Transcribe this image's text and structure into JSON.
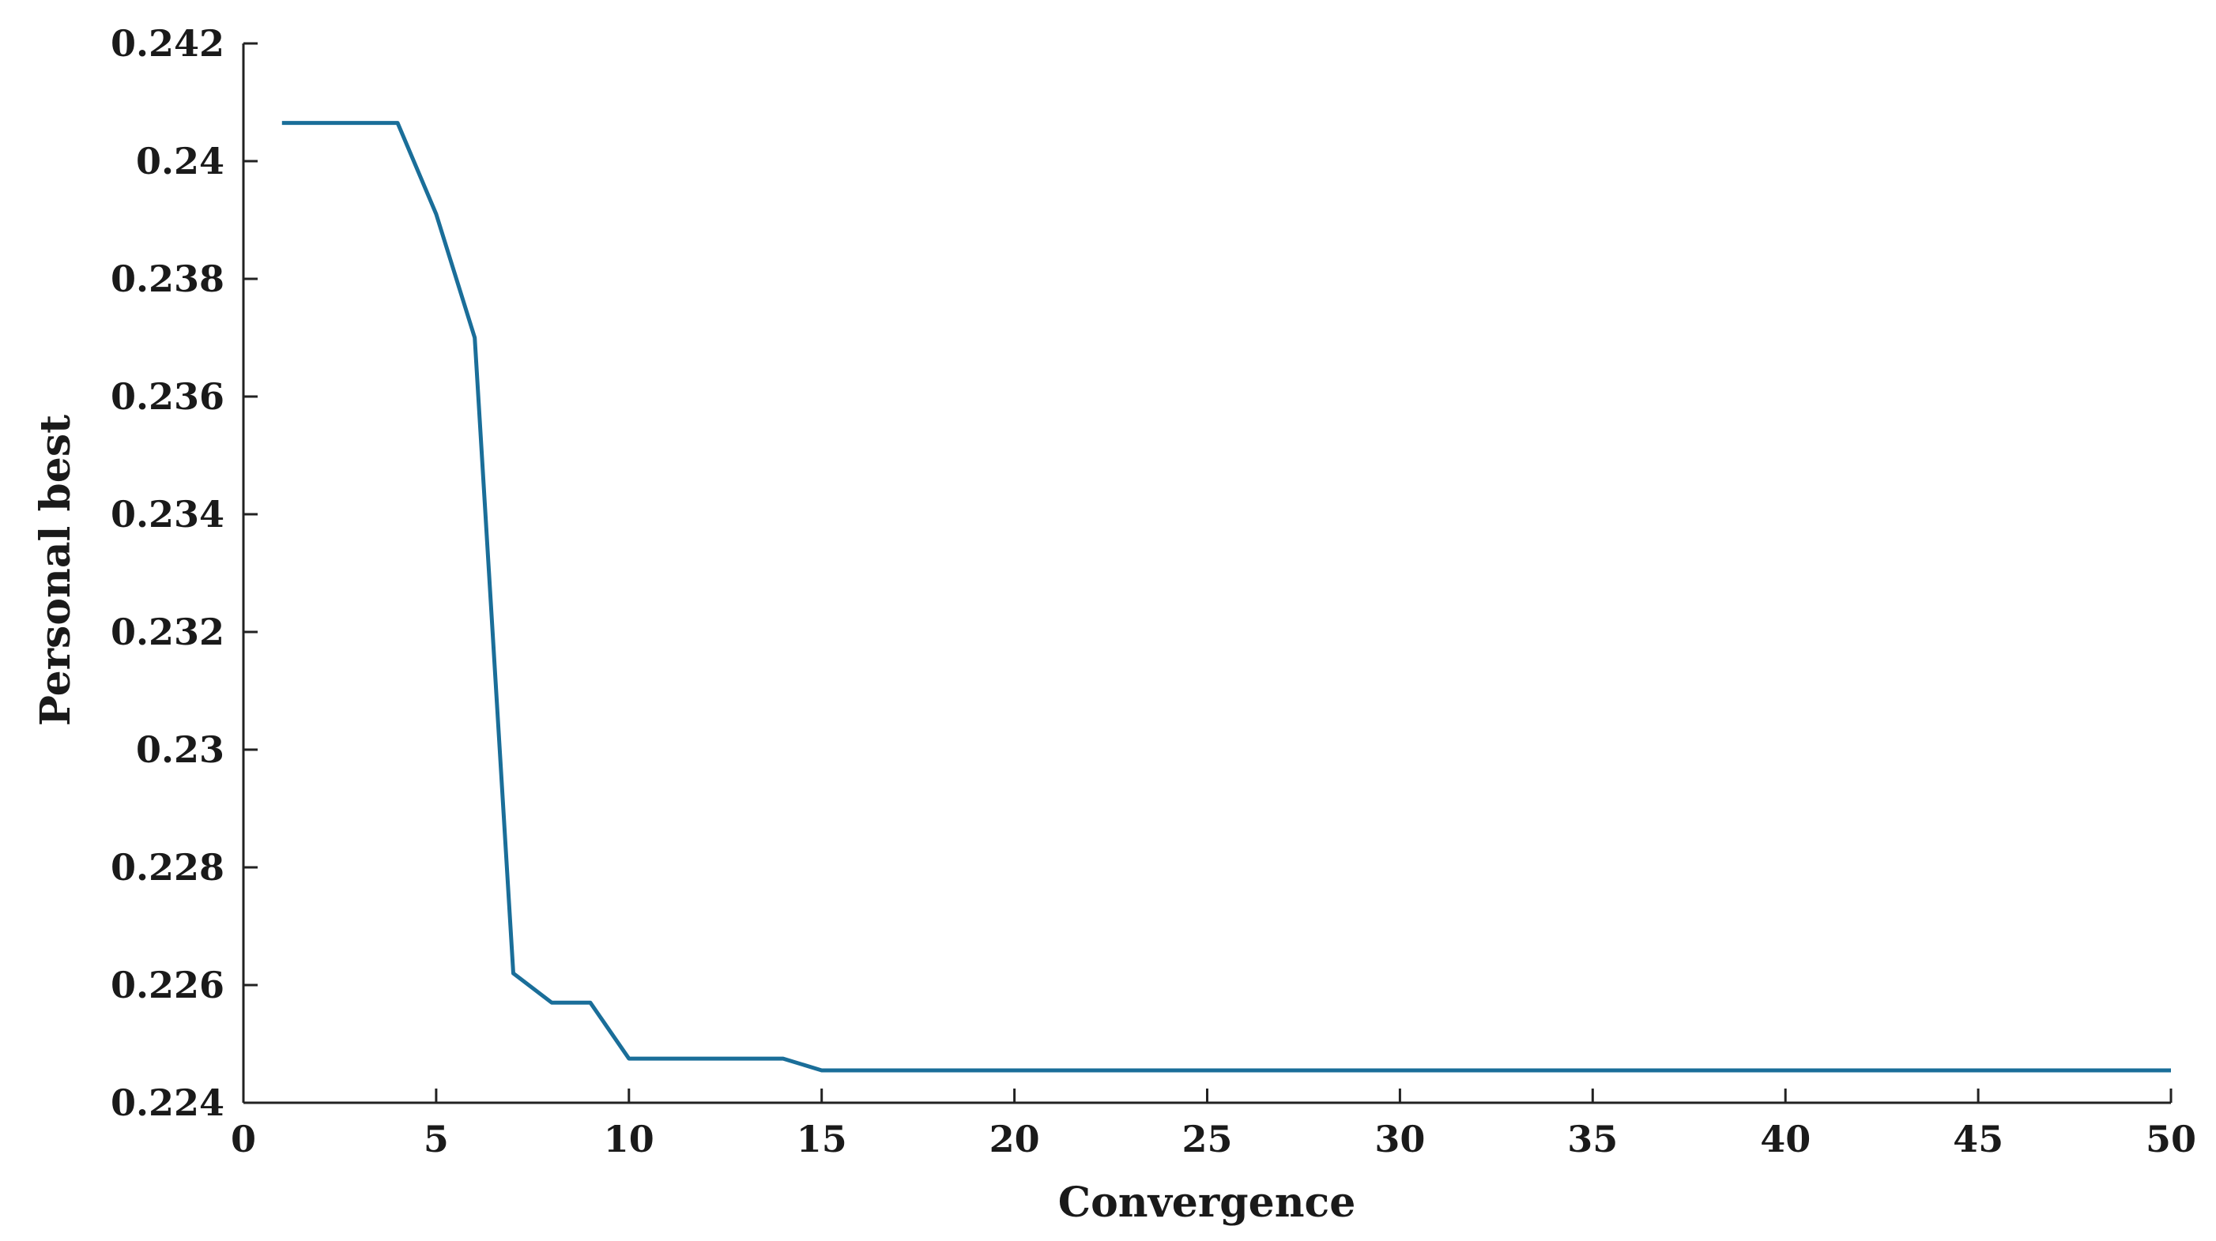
{
  "chart_data": {
    "type": "line",
    "title": "",
    "xlabel": "Convergence",
    "ylabel": "Personal best",
    "xlim": [
      0,
      50
    ],
    "ylim": [
      0.224,
      0.242
    ],
    "x_ticks": [
      0,
      5,
      10,
      15,
      20,
      25,
      30,
      35,
      40,
      45,
      50
    ],
    "x_tick_labels": [
      "0",
      "5",
      "10",
      "15",
      "20",
      "25",
      "30",
      "35",
      "40",
      "45",
      "50"
    ],
    "y_ticks": [
      0.224,
      0.226,
      0.228,
      0.23,
      0.232,
      0.234,
      0.236,
      0.238,
      0.24,
      0.242
    ],
    "y_tick_labels": [
      "0.224",
      "0.226",
      "0.228",
      "0.23",
      "0.232",
      "0.234",
      "0.236",
      "0.238",
      "0.24",
      "0.242"
    ],
    "grid": false,
    "line_color": "#1a6e99",
    "series": [
      {
        "x": [
          1,
          2,
          3,
          4,
          5,
          6,
          7,
          8,
          9,
          10,
          11,
          12,
          13,
          14,
          15,
          16,
          17,
          18,
          19,
          20,
          21,
          22,
          23,
          24,
          25,
          26,
          27,
          28,
          29,
          30,
          31,
          32,
          33,
          34,
          35,
          36,
          37,
          38,
          39,
          40,
          41,
          42,
          43,
          44,
          45,
          46,
          47,
          48,
          49,
          50
        ],
        "values": [
          0.24065,
          0.24065,
          0.24065,
          0.24065,
          0.2391,
          0.237,
          0.2262,
          0.2257,
          0.2257,
          0.22475,
          0.22475,
          0.22475,
          0.22475,
          0.22475,
          0.22455,
          0.22455,
          0.22455,
          0.22455,
          0.22455,
          0.22455,
          0.22455,
          0.22455,
          0.22455,
          0.22455,
          0.22455,
          0.22455,
          0.22455,
          0.22455,
          0.22455,
          0.22455,
          0.22455,
          0.22455,
          0.22455,
          0.22455,
          0.22455,
          0.22455,
          0.22455,
          0.22455,
          0.22455,
          0.22455,
          0.22455,
          0.22455,
          0.22455,
          0.22455,
          0.22455,
          0.22455,
          0.22455,
          0.22455,
          0.22455,
          0.22455
        ]
      }
    ]
  }
}
